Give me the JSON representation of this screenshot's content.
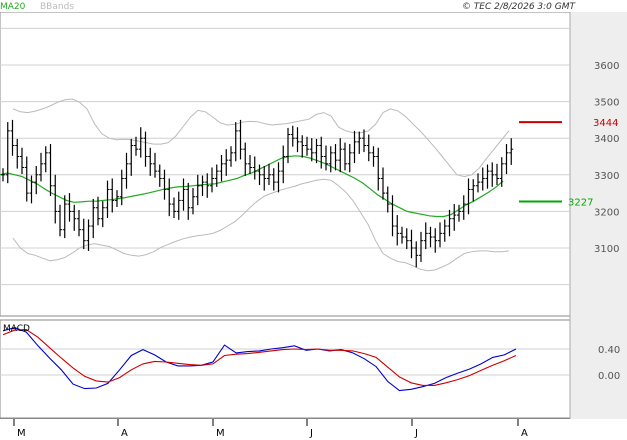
{
  "header": {
    "legend": [
      {
        "label": "MA20",
        "color": "#22aa22"
      },
      {
        "label": "BBands",
        "color": "#bbbbbb"
      }
    ],
    "copyright": "© TEC 2/8/2026 3:0 GMT"
  },
  "chart_data": [
    {
      "type": "ohlc",
      "ylim": [
        3000,
        3700
      ],
      "y_ticks": [
        "3100",
        "3200",
        "3300",
        "3400",
        "3500",
        "3600"
      ],
      "x_tick_labels": [
        "M",
        "A",
        "M",
        "J",
        "J",
        "A"
      ],
      "grid": true,
      "series_colors": {
        "price": "#000000",
        "ma20": "#22aa22",
        "bbands": "#bbbbbb",
        "resistance": "#cc0000",
        "support": "#00aa00"
      },
      "resistance": {
        "value": 3444,
        "label": "3444"
      },
      "support": {
        "value": 3227,
        "label": "3227"
      },
      "close": [
        3300,
        3420,
        3380,
        3350,
        3320,
        3250,
        3280,
        3300,
        3330,
        3360,
        3270,
        3200,
        3150,
        3220,
        3200,
        3180,
        3150,
        3120,
        3160,
        3210,
        3180,
        3210,
        3260,
        3230,
        3240,
        3290,
        3330,
        3380,
        3370,
        3400,
        3350,
        3330,
        3310,
        3290,
        3260,
        3220,
        3200,
        3230,
        3260,
        3210,
        3240,
        3270,
        3280,
        3270,
        3290,
        3310,
        3330,
        3340,
        3360,
        3420,
        3370,
        3330,
        3320,
        3310,
        3300,
        3290,
        3300,
        3280,
        3310,
        3350,
        3410,
        3400,
        3390,
        3380,
        3370,
        3360,
        3380,
        3350,
        3330,
        3360,
        3340,
        3370,
        3330,
        3360,
        3390,
        3400,
        3380,
        3360,
        3350,
        3290,
        3250,
        3220,
        3160,
        3140,
        3130,
        3120,
        3100,
        3080,
        3120,
        3140,
        3130,
        3120,
        3140,
        3160,
        3180,
        3190,
        3200,
        3220,
        3260,
        3270,
        3280,
        3290,
        3310,
        3300,
        3290,
        3330,
        3360,
        3370
      ],
      "ma20": [
        3300,
        3305,
        3300,
        3295,
        3285,
        3275,
        3262,
        3250,
        3240,
        3230,
        3225,
        3226,
        3228,
        3228,
        3230,
        3232,
        3235,
        3238,
        3242,
        3246,
        3250,
        3255,
        3260,
        3264,
        3267,
        3268,
        3270,
        3272,
        3274,
        3275,
        3280,
        3285,
        3290,
        3298,
        3305,
        3315,
        3325,
        3335,
        3345,
        3350,
        3352,
        3350,
        3345,
        3338,
        3330,
        3320,
        3310,
        3300,
        3290,
        3278,
        3262,
        3246,
        3233,
        3220,
        3210,
        3200,
        3196,
        3192,
        3188,
        3186,
        3186,
        3192,
        3205,
        3218,
        3228,
        3240,
        3252,
        3266,
        3283
      ],
      "bb_upper": [
        3480,
        3472,
        3470,
        3474,
        3480,
        3488,
        3498,
        3505,
        3507,
        3498,
        3480,
        3440,
        3412,
        3400,
        3396,
        3397,
        3396,
        3392,
        3388,
        3384,
        3384,
        3388,
        3406,
        3432,
        3458,
        3476,
        3472,
        3458,
        3442,
        3436,
        3438,
        3444,
        3446,
        3445,
        3440,
        3436,
        3438,
        3440,
        3444,
        3448,
        3452,
        3465,
        3470,
        3460,
        3430,
        3420,
        3415,
        3415,
        3420,
        3438,
        3470,
        3480,
        3475,
        3460,
        3440,
        3420,
        3398,
        3375,
        3350,
        3325,
        3300,
        3295,
        3300,
        3318,
        3345,
        3370,
        3395,
        3420
      ],
      "bb_lower": [
        3127,
        3100,
        3085,
        3080,
        3072,
        3065,
        3068,
        3074,
        3086,
        3100,
        3108,
        3112,
        3108,
        3104,
        3095,
        3085,
        3080,
        3078,
        3082,
        3090,
        3102,
        3110,
        3118,
        3125,
        3130,
        3134,
        3136,
        3140,
        3148,
        3160,
        3172,
        3190,
        3210,
        3228,
        3242,
        3250,
        3257,
        3263,
        3268,
        3275,
        3280,
        3285,
        3288,
        3285,
        3270,
        3252,
        3228,
        3196,
        3164,
        3120,
        3085,
        3072,
        3063,
        3060,
        3052,
        3042,
        3038,
        3040,
        3048,
        3058,
        3072,
        3085,
        3090,
        3092,
        3092,
        3090,
        3090,
        3092
      ]
    },
    {
      "type": "line",
      "name": "MACD",
      "ylim": [
        -20,
        90
      ],
      "y_ticks": [
        "0.00",
        "0.40"
      ],
      "macd": [
        68,
        73,
        66,
        45,
        26,
        8,
        -14,
        -21,
        -20,
        -13,
        8,
        30,
        39,
        31,
        20,
        14,
        14,
        15,
        20,
        46,
        34,
        36,
        37,
        40,
        42,
        45,
        38,
        40,
        37,
        39,
        34,
        25,
        13,
        -10,
        -24,
        -22,
        -18,
        -13,
        -4,
        3,
        9,
        17,
        27,
        31,
        40
      ],
      "signal": [
        62,
        69,
        70,
        58,
        42,
        26,
        11,
        -2,
        -9,
        -11,
        -4,
        8,
        17,
        21,
        20,
        18,
        16,
        15,
        17,
        30,
        32,
        33,
        35,
        37,
        39,
        40,
        39,
        40,
        38,
        38,
        37,
        33,
        27,
        12,
        -3,
        -12,
        -16,
        -16,
        -12,
        -7,
        -1,
        7,
        15,
        22,
        30
      ]
    }
  ]
}
